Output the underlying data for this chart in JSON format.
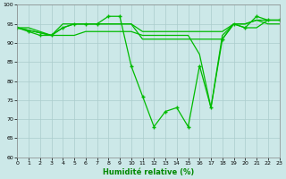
{
  "line1": {
    "x": [
      0,
      1,
      2,
      3,
      4,
      5,
      6,
      7,
      8,
      9,
      10,
      11,
      12,
      13,
      14,
      15,
      16,
      17,
      18,
      19,
      20,
      21,
      22,
      23
    ],
    "y": [
      94,
      93,
      92,
      92,
      94,
      95,
      95,
      95,
      97,
      97,
      84,
      76,
      68,
      72,
      73,
      68,
      84,
      73,
      91,
      95,
      94,
      97,
      96,
      96
    ]
  },
  "line2": {
    "x": [
      0,
      3,
      4,
      5,
      6,
      7,
      8,
      9,
      10,
      11,
      12,
      13,
      14,
      15,
      16,
      17,
      18,
      19,
      20,
      21,
      22,
      23
    ],
    "y": [
      94,
      92,
      94,
      95,
      95,
      95,
      95,
      95,
      95,
      91,
      91,
      91,
      91,
      91,
      91,
      91,
      91,
      95,
      95,
      96,
      96,
      96
    ]
  },
  "line3": {
    "x": [
      0,
      3,
      4,
      5,
      6,
      7,
      8,
      9,
      10,
      11,
      12,
      13,
      14,
      15,
      16,
      17,
      18,
      19,
      20,
      21,
      22,
      23
    ],
    "y": [
      94,
      92,
      95,
      95,
      95,
      95,
      95,
      95,
      95,
      93,
      93,
      93,
      93,
      93,
      93,
      93,
      93,
      95,
      95,
      96,
      95,
      95
    ]
  },
  "line4": {
    "x": [
      0,
      1,
      2,
      3,
      4,
      5,
      6,
      7,
      8,
      9,
      10,
      11,
      12,
      13,
      14,
      15,
      16,
      17,
      18,
      19,
      20,
      21,
      22,
      23
    ],
    "y": [
      94,
      94,
      93,
      92,
      92,
      92,
      93,
      93,
      93,
      93,
      93,
      92,
      92,
      92,
      92,
      92,
      87,
      73,
      92,
      95,
      94,
      94,
      96,
      96
    ]
  },
  "line_color": "#00bb00",
  "bg_color": "#cce8e8",
  "grid_color": "#aacccc",
  "xlabel": "Humidité relative (%)",
  "xlabel_color": "#008800",
  "ylim": [
    60,
    100
  ],
  "xlim": [
    0,
    23
  ],
  "yticks": [
    60,
    65,
    70,
    75,
    80,
    85,
    90,
    95,
    100
  ],
  "xticks": [
    0,
    1,
    2,
    3,
    4,
    5,
    6,
    7,
    8,
    9,
    10,
    11,
    12,
    13,
    14,
    15,
    16,
    17,
    18,
    19,
    20,
    21,
    22,
    23
  ]
}
